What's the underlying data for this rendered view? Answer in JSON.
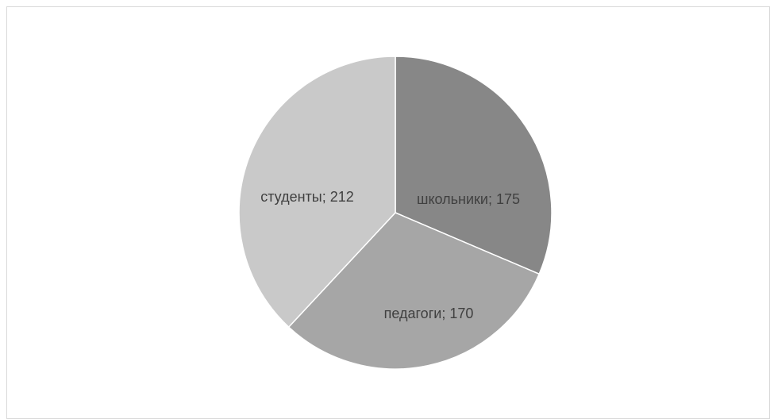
{
  "chart_data": {
    "type": "pie",
    "categories": [
      "школьники",
      "педагоги",
      "студенты"
    ],
    "values": [
      175,
      170,
      212
    ],
    "labels": [
      "школьники; 175",
      "педагоги; 170",
      "студенты; 212"
    ],
    "colors": [
      "#878787",
      "#a6a6a6",
      "#c9c9c9"
    ],
    "start_angle_deg": 0,
    "direction": "clockwise",
    "legend": "none",
    "data_labels": "inside"
  }
}
